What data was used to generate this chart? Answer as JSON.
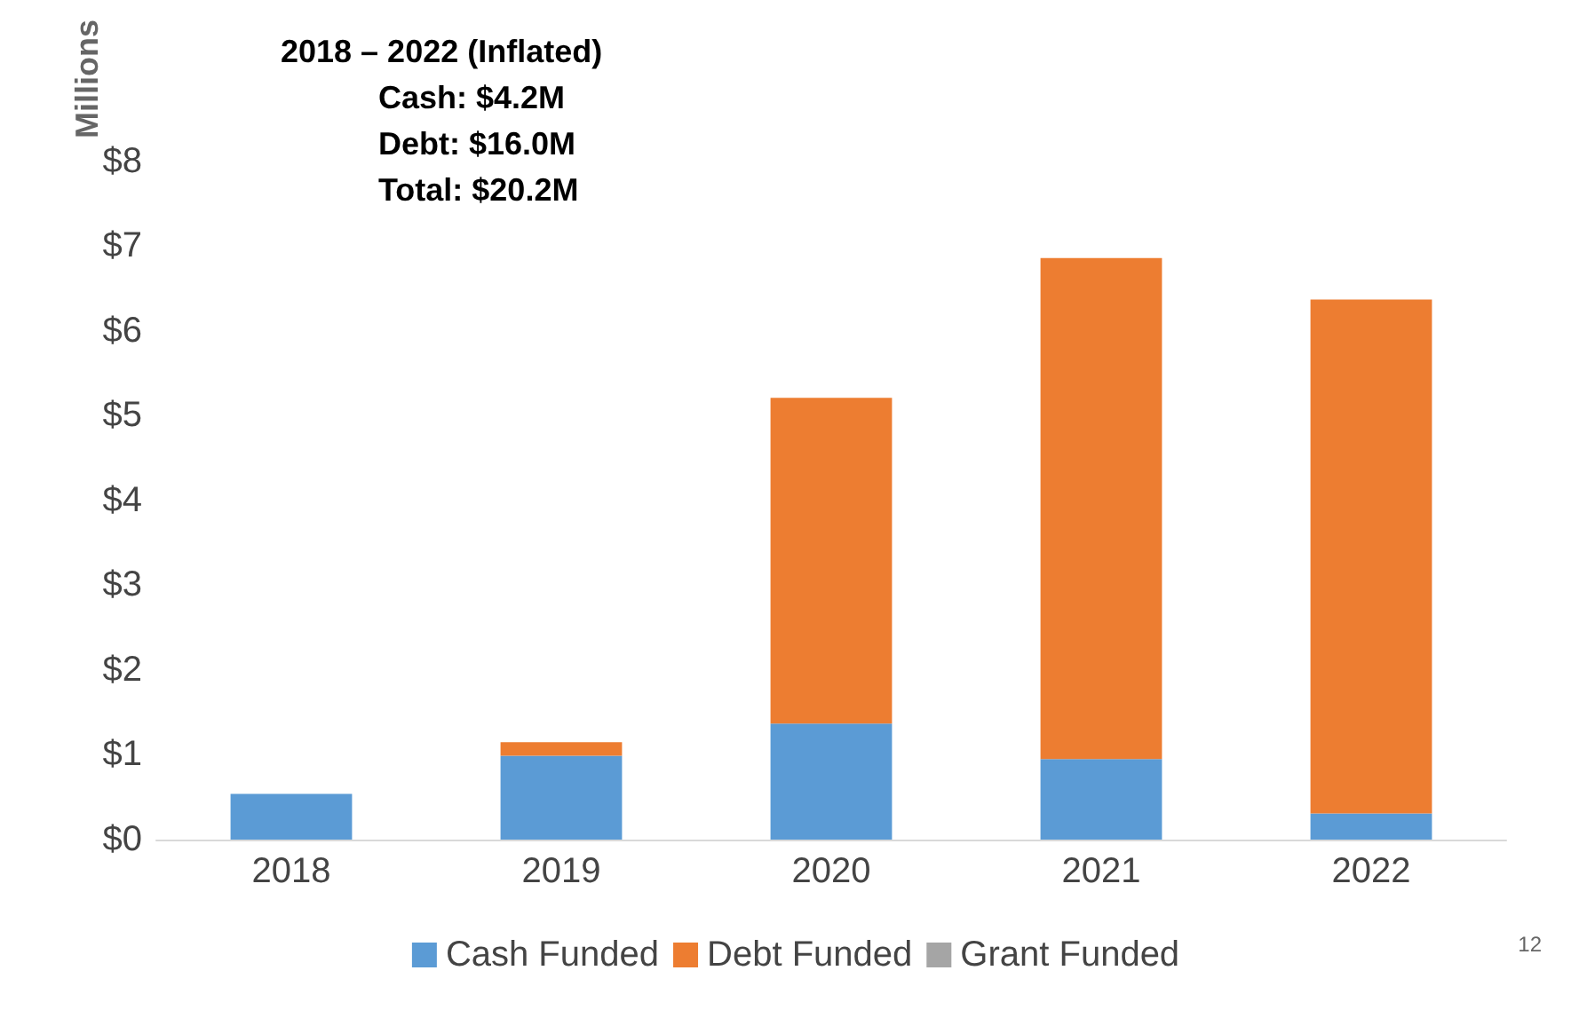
{
  "chart_data": {
    "type": "bar",
    "stacked": true,
    "ylabel": "Millions",
    "categories": [
      "2018",
      "2019",
      "2020",
      "2021",
      "2022"
    ],
    "series": [
      {
        "name": "Cash Funded",
        "color": "#5b9bd5",
        "values": [
          0.54,
          0.99,
          1.37,
          0.95,
          0.31
        ]
      },
      {
        "name": "Debt Funded",
        "color": "#ed7d31",
        "values": [
          0,
          0.16,
          3.84,
          5.91,
          6.06
        ]
      },
      {
        "name": "Grant Funded",
        "color": "#a5a5a5",
        "values": [
          0,
          0,
          0,
          0,
          0
        ]
      }
    ],
    "ylim": [
      0,
      8
    ],
    "yticks": [
      {
        "value": 0,
        "label": "$0"
      },
      {
        "value": 1,
        "label": "$1"
      },
      {
        "value": 2,
        "label": "$2"
      },
      {
        "value": 3,
        "label": "$3"
      },
      {
        "value": 4,
        "label": "$4"
      },
      {
        "value": 5,
        "label": "$5"
      },
      {
        "value": 6,
        "label": "$6"
      },
      {
        "value": 7,
        "label": "$7"
      },
      {
        "value": 8,
        "label": "$8"
      }
    ],
    "grid": false,
    "legend": "bottom",
    "annotations": [
      "2018 – 2022 (Inflated)",
      "Cash: $4.2M",
      "Debt: $16.0M",
      "Total: $20.2M",
      "12"
    ]
  }
}
